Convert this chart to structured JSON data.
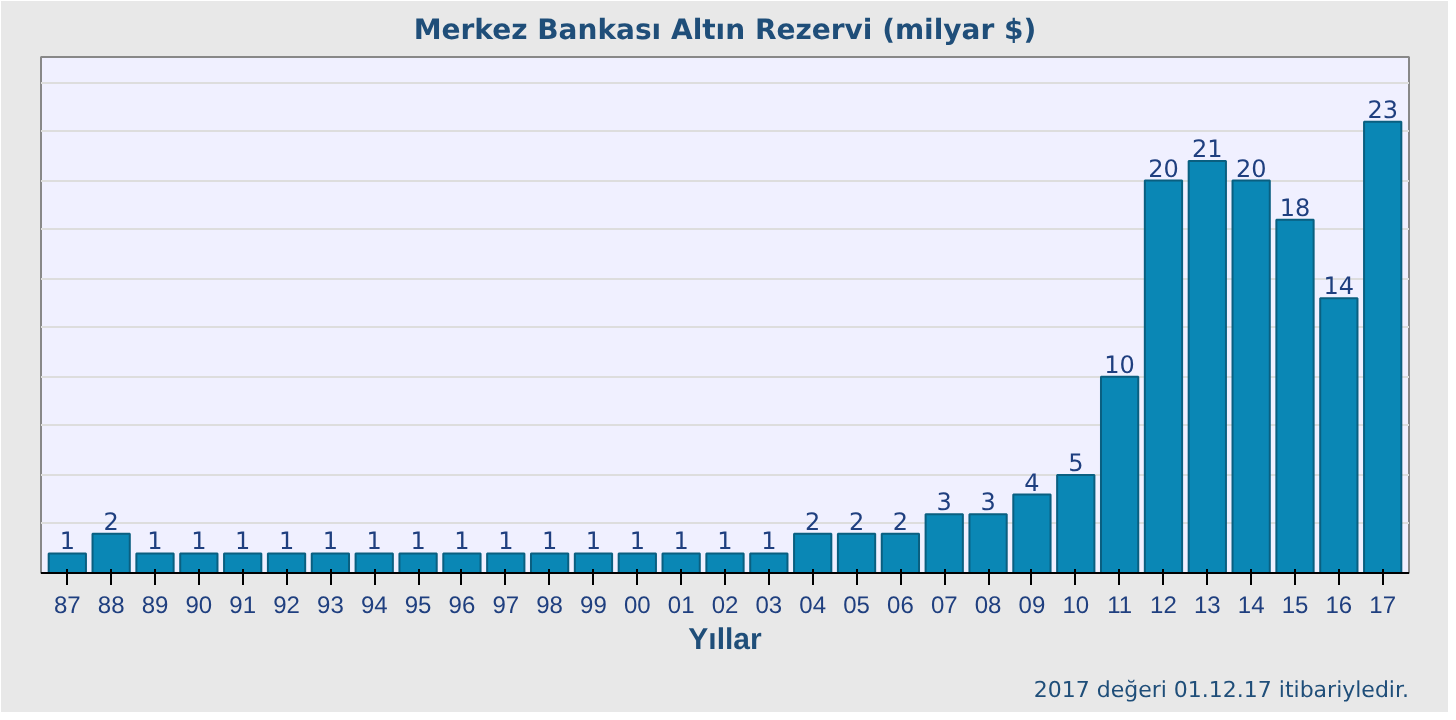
{
  "chart_data": {
    "type": "bar",
    "title": "Merkez Bankası Altın Rezervi (milyar $)",
    "xlabel": "Yıllar",
    "annotations": [
      "2017 değeri 01.12.17 itibariyledir."
    ],
    "categories": [
      "87",
      "88",
      "89",
      "90",
      "91",
      "92",
      "93",
      "94",
      "95",
      "96",
      "97",
      "98",
      "99",
      "00",
      "01",
      "02",
      "03",
      "04",
      "05",
      "06",
      "07",
      "08",
      "09",
      "10",
      "11",
      "12",
      "13",
      "14",
      "15",
      "16",
      "17"
    ],
    "values": [
      1,
      2,
      1,
      1,
      1,
      1,
      1,
      1,
      1,
      1,
      1,
      1,
      1,
      1,
      1,
      1,
      1,
      2,
      2,
      2,
      3,
      3,
      4,
      5,
      10,
      20,
      21,
      20,
      18,
      14,
      23
    ],
    "color": "#0a87b5",
    "data_labels": true,
    "ylim": [
      0,
      26.3
    ],
    "yticks": [
      {
        "value": 0,
        "label": null
      },
      {
        "value": 2.5,
        "label": null
      },
      {
        "value": 5,
        "label": null
      },
      {
        "value": 7.5,
        "label": null
      },
      {
        "value": 10,
        "label": null
      },
      {
        "value": 12.5,
        "label": null
      },
      {
        "value": 15,
        "label": null
      },
      {
        "value": 17.5,
        "label": null
      },
      {
        "value": 20,
        "label": null
      },
      {
        "value": 22.5,
        "label": null
      },
      {
        "value": 25,
        "label": null
      }
    ],
    "grid": "y",
    "tick_labels": "x"
  }
}
